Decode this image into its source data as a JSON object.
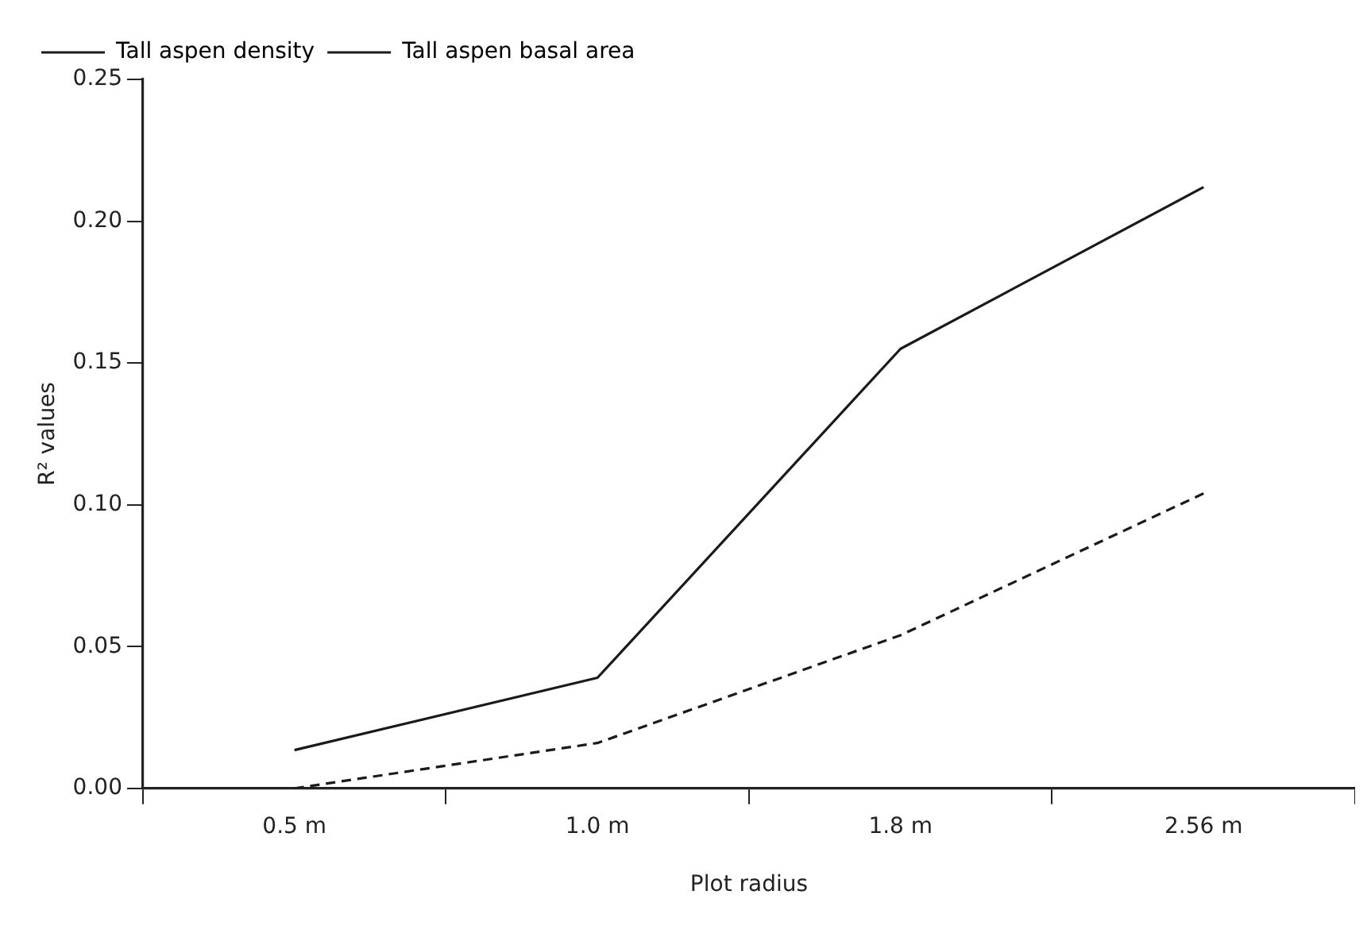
{
  "chart_data": {
    "type": "line",
    "xlabel": "Plot radius",
    "ylabel": "R² values",
    "categories": [
      "0.5 m",
      "1.0 m",
      "1.8 m",
      "2.56 m"
    ],
    "series": [
      {
        "name": "Tall aspen density",
        "color": "#1a1a1a",
        "line_style": "solid",
        "values": [
          0.0135,
          0.039,
          0.155,
          0.212
        ]
      },
      {
        "name": "Tall aspen basal area",
        "color": "#1a1a1a",
        "line_style": "dashed",
        "values": [
          0,
          0.016,
          0.054,
          0.104
        ]
      }
    ],
    "ylim": [
      0,
      0.25
    ],
    "yticks": [
      {
        "value": 0,
        "label": "0.00"
      },
      {
        "value": 0.05,
        "label": "0.05"
      },
      {
        "value": 0.1,
        "label": "0.10"
      },
      {
        "value": 0.15,
        "label": "0.15"
      },
      {
        "value": 0.2,
        "label": "0.20"
      },
      {
        "value": 0.25,
        "label": "0.25"
      }
    ],
    "grid": false,
    "legend": "top left",
    "marker": "none"
  }
}
